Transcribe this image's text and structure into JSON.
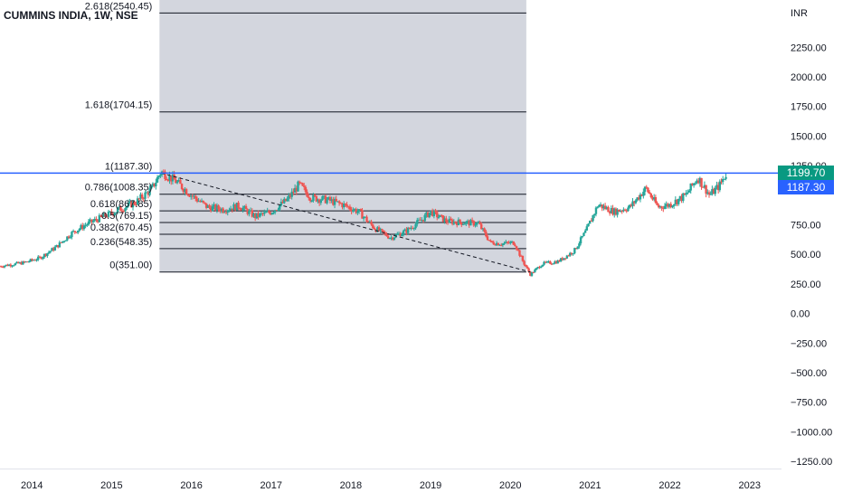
{
  "header": {
    "symbol": "CUMMINS INDIA, 1W, NSE"
  },
  "price_tags": {
    "current": "1199.70",
    "level": "1187.30"
  },
  "colors": {
    "up": "#26a69a",
    "down": "#ef5350",
    "fib_zone": "#d1d4dc",
    "level_line": "#2962ff",
    "current_tag": "#089981",
    "level_tag": "#2962ff"
  },
  "chart_data": {
    "type": "candlestick",
    "title": "CUMMINS INDIA, 1W, NSE",
    "currency_label": "INR",
    "ylim": [
      -1310,
      2650
    ],
    "y_ticks": [
      2250,
      2000,
      1750,
      1500,
      1250,
      750,
      500,
      250,
      0,
      -250,
      -500,
      -750,
      -1000,
      -1250
    ],
    "y_tick_labels": [
      "2250.00",
      "2000.00",
      "1750.00",
      "1500.00",
      "1250.00",
      "750.00",
      "500.00",
      "250.00",
      "0.00",
      "−250.00",
      "−500.00",
      "−750.00",
      "−1000.00",
      "−1250.00"
    ],
    "xlim": [
      2013.6,
      2023.4
    ],
    "x_ticks": [
      2014,
      2015,
      2016,
      2017,
      2018,
      2019,
      2020,
      2021,
      2022,
      2023
    ],
    "x_tick_labels": [
      "2014",
      "2015",
      "2016",
      "2017",
      "2018",
      "2019",
      "2020",
      "2021",
      "2022",
      "2023"
    ],
    "fibonacci": {
      "from_x": 2015.6,
      "to_x": 2020.2,
      "levels": [
        {
          "label": "2.618(2540.45)",
          "value": 2540.45
        },
        {
          "label": "1.618(1704.15)",
          "value": 1704.15
        },
        {
          "label": "1(1187.30)",
          "value": 1187.3
        },
        {
          "label": "0.786(1008.35)",
          "value": 1008.35
        },
        {
          "label": "0.618(867.85)",
          "value": 867.85
        },
        {
          "label": "0.5(769.15)",
          "value": 769.15
        },
        {
          "label": "0.382(670.45)",
          "value": 670.45
        },
        {
          "label": "0.236(548.35)",
          "value": 548.35
        },
        {
          "label": "0(351.00)",
          "value": 351.0
        }
      ]
    },
    "trendline": {
      "x1": 2015.62,
      "y1": 1187.3,
      "x2": 2020.25,
      "y2": 351
    },
    "horizontal_level": 1187.3,
    "last_price": 1199.7,
    "path_points": [
      [
        2013.6,
        400
      ],
      [
        2013.9,
        430
      ],
      [
        2014.1,
        470
      ],
      [
        2014.3,
        560
      ],
      [
        2014.5,
        680
      ],
      [
        2014.7,
        760
      ],
      [
        2014.9,
        820
      ],
      [
        2015.1,
        880
      ],
      [
        2015.3,
        940
      ],
      [
        2015.5,
        1050
      ],
      [
        2015.62,
        1200
      ],
      [
        2015.8,
        1120
      ],
      [
        2016.0,
        1000
      ],
      [
        2016.2,
        900
      ],
      [
        2016.4,
        880
      ],
      [
        2016.6,
        910
      ],
      [
        2016.8,
        820
      ],
      [
        2017.0,
        860
      ],
      [
        2017.2,
        960
      ],
      [
        2017.35,
        1090
      ],
      [
        2017.5,
        980
      ],
      [
        2017.7,
        960
      ],
      [
        2017.9,
        920
      ],
      [
        2018.1,
        860
      ],
      [
        2018.3,
        720
      ],
      [
        2018.5,
        640
      ],
      [
        2018.7,
        700
      ],
      [
        2018.9,
        800
      ],
      [
        2019.0,
        860
      ],
      [
        2019.2,
        780
      ],
      [
        2019.4,
        770
      ],
      [
        2019.6,
        760
      ],
      [
        2019.75,
        600
      ],
      [
        2019.9,
        590
      ],
      [
        2020.05,
        600
      ],
      [
        2020.15,
        450
      ],
      [
        2020.25,
        330
      ],
      [
        2020.4,
        420
      ],
      [
        2020.6,
        440
      ],
      [
        2020.8,
        530
      ],
      [
        2020.95,
        700
      ],
      [
        2021.1,
        920
      ],
      [
        2021.3,
        860
      ],
      [
        2021.5,
        900
      ],
      [
        2021.7,
        1060
      ],
      [
        2021.85,
        900
      ],
      [
        2022.0,
        920
      ],
      [
        2022.2,
        1000
      ],
      [
        2022.35,
        1150
      ],
      [
        2022.5,
        1000
      ],
      [
        2022.62,
        1080
      ],
      [
        2022.72,
        1199.7
      ]
    ]
  }
}
